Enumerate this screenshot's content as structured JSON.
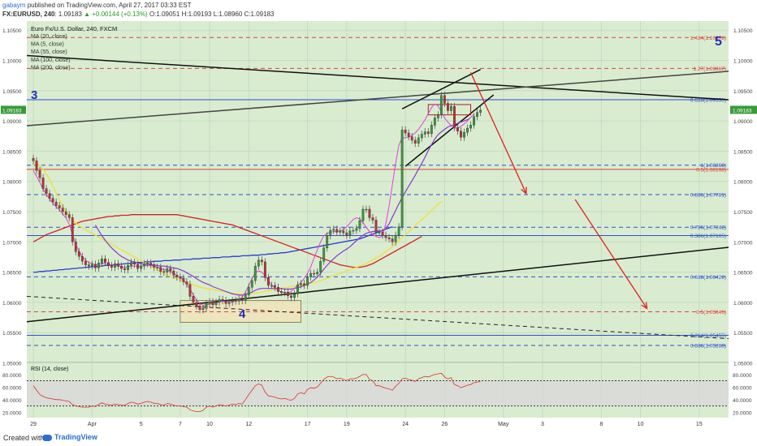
{
  "header": {
    "author": "gabaym",
    "published_text": "published on TradingView.com, April 27, 2017 03:33 EST",
    "symbol": "FX:EURUSD, 240",
    "last": "1.09183",
    "change": "+0.00144 (+0.13%)",
    "open": "O:1.09051",
    "high": "H:1.09193",
    "low": "L:1.08960",
    "close": "C:1.09183"
  },
  "legend": {
    "title": "Euro Fx/U.S. Dollar, 240, FXCM",
    "items": [
      "MA (20, close)",
      "MA (5, close)",
      "MA (55, close)",
      "MA (100, close)",
      "MA (200, close)"
    ]
  },
  "annotations": {
    "wave_3": "3",
    "wave_4": "4",
    "wave_5": "5"
  },
  "fib_labels": [
    {
      "text": "1.414(1.10378)",
      "price": 1.10378,
      "color": "#e04040"
    },
    {
      "text": "1.27(1.09867)",
      "price": 1.09867,
      "color": "#e04040"
    },
    {
      "text": "0.618(1.09350)",
      "price": 1.0935,
      "color": "#3050d0"
    },
    {
      "text": "1(1.08268)",
      "price": 1.08268,
      "color": "#3050d0"
    },
    {
      "text": "0.5(1.08198)",
      "price": 1.08198,
      "color": "#e04040"
    },
    {
      "text": "0.886(1.07781)",
      "price": 1.07781,
      "color": "#3050d0"
    },
    {
      "text": "0.786(1.07242)",
      "price": 1.07242,
      "color": "#3050d0"
    },
    {
      "text": "0.386(1.07105)",
      "price": 1.07105,
      "color": "#3050d0"
    },
    {
      "text": "0.618(1.06422)",
      "price": 1.06422,
      "color": "#3050d0"
    },
    {
      "text": "0.5(1.05845)",
      "price": 1.05845,
      "color": "#e04040"
    },
    {
      "text": "0.214(1.05455)",
      "price": 1.05455,
      "color": "#3050d0"
    },
    {
      "text": "0.386(1.05288)",
      "price": 1.05288,
      "color": "#3050d0"
    }
  ],
  "price_badge": "1.09183",
  "rsi": {
    "title": "RSI (14, close)",
    "ticks": [
      "80.0000",
      "60.0000",
      "40.0000",
      "20.0000"
    ],
    "tick_values": [
      80,
      60,
      40,
      20
    ]
  },
  "footer": {
    "created_with": "Created with",
    "brand": "TradingView"
  },
  "chart_data": {
    "type": "candlestick",
    "title": "Euro Fx/U.S. Dollar, 240, FXCM",
    "ylim": [
      1.0502,
      1.1065
    ],
    "y_ticks": [
      1.105,
      1.1,
      1.095,
      1.09,
      1.085,
      1.08,
      1.075,
      1.07,
      1.065,
      1.06,
      1.055,
      1.05
    ],
    "y_tick_labels": [
      "1.10500",
      "1.10000",
      "1.09500",
      "1.09000",
      "1.08500",
      "1.08000",
      "1.07500",
      "1.07000",
      "1.06500",
      "1.06000",
      "1.05500",
      "1.05000"
    ],
    "x_ticks": [
      {
        "label": "29",
        "bar": 0
      },
      {
        "label": "Apr",
        "bar": 18
      },
      {
        "label": "5",
        "bar": 33
      },
      {
        "label": "7",
        "bar": 45
      },
      {
        "label": "10",
        "bar": 54
      },
      {
        "label": "12",
        "bar": 66
      },
      {
        "label": "17",
        "bar": 84
      },
      {
        "label": "19",
        "bar": 96
      },
      {
        "label": "24",
        "bar": 114
      },
      {
        "label": "26",
        "bar": 126
      },
      {
        "label": "May",
        "bar": 144
      },
      {
        "label": "3",
        "bar": 156
      },
      {
        "label": "8",
        "bar": 174
      },
      {
        "label": "10",
        "bar": 186
      },
      {
        "label": "15",
        "bar": 204
      }
    ],
    "x_bar_range": [
      -2,
      213
    ],
    "close": [
      1.0834,
      1.0818,
      1.0806,
      1.0788,
      1.078,
      1.0772,
      1.0766,
      1.076,
      1.0756,
      1.075,
      1.0745,
      1.074,
      1.07,
      1.0684,
      1.0676,
      1.0668,
      1.0662,
      1.066,
      1.0663,
      1.0657,
      1.0665,
      1.0672,
      1.0666,
      1.0661,
      1.0658,
      1.0664,
      1.066,
      1.0656,
      1.0654,
      1.0661,
      1.0666,
      1.0663,
      1.0656,
      1.066,
      1.0664,
      1.0665,
      1.0662,
      1.0658,
      1.0658,
      1.0651,
      1.065,
      1.0656,
      1.0652,
      1.0645,
      1.0642,
      1.064,
      1.0634,
      1.063,
      1.061,
      1.06,
      1.0594,
      1.0588,
      1.059,
      1.0598,
      1.0601,
      1.0596,
      1.06,
      1.0605,
      1.0603,
      1.0598,
      1.06,
      1.0603,
      1.0602,
      1.0605,
      1.0603,
      1.0612,
      1.0625,
      1.0636,
      1.066,
      1.067,
      1.0667,
      1.0641,
      1.0628,
      1.0628,
      1.0625,
      1.0618,
      1.0616,
      1.0617,
      1.0611,
      1.0608,
      1.0614,
      1.0629,
      1.0631,
      1.0628,
      1.0642,
      1.0648,
      1.0647,
      1.065,
      1.0668,
      1.069,
      1.071,
      1.0719,
      1.0721,
      1.0716,
      1.0718,
      1.0715,
      1.0711,
      1.0718,
      1.0719,
      1.0722,
      1.0735,
      1.0754,
      1.0754,
      1.074,
      1.0736,
      1.0716,
      1.0716,
      1.0711,
      1.0707,
      1.0705,
      1.07,
      1.0711,
      1.0725,
      1.0885,
      1.088,
      1.0874,
      1.0868,
      1.0863,
      1.0872,
      1.0878,
      1.0882,
      1.0879,
      1.0893,
      1.0905,
      1.091,
      1.0942,
      1.0929,
      1.0917,
      1.0924,
      1.0889,
      1.0883,
      1.0873,
      1.0881,
      1.0888,
      1.0893,
      1.0907,
      1.0914,
      1.0918
    ],
    "ma_fast": [
      1.0818,
      1.0808,
      1.0798,
      1.0787,
      1.0779,
      1.0771,
      1.0764,
      1.0758,
      1.0753,
      1.0746,
      1.074,
      1.0729,
      1.0712,
      1.0696,
      1.0684,
      1.0676,
      1.067,
      1.0666,
      1.0664,
      1.0662,
      1.0663,
      1.0664,
      1.0664,
      1.0663,
      1.0662,
      1.0661,
      1.066,
      1.0659,
      1.0658,
      1.0659,
      1.066,
      1.066,
      1.066,
      1.066,
      1.0661,
      1.0661,
      1.0661,
      1.066,
      1.0658,
      1.0656,
      1.0654,
      1.0653,
      1.0651,
      1.0648,
      1.0644,
      1.0641,
      1.0637,
      1.063,
      1.0622,
      1.0613,
      1.0604,
      1.0598,
      1.0595,
      1.0596,
      1.0597,
      1.0598,
      1.0599,
      1.0601,
      1.0602,
      1.0601,
      1.0601,
      1.0602,
      1.0603,
      1.0605,
      1.0609,
      1.0617,
      1.0628,
      1.064,
      1.0649,
      1.0652,
      1.065,
      1.0644,
      1.0636,
      1.0629,
      1.0624,
      1.062,
      1.0617,
      1.0616,
      1.0616,
      1.0618,
      1.0623,
      1.0628,
      1.0633,
      1.064,
      1.0648,
      1.0659,
      1.0673,
      1.0687,
      1.07,
      1.071,
      1.0714,
      1.0716,
      1.0717,
      1.0717,
      1.0718,
      1.072,
      1.0725,
      1.0731,
      1.0737,
      1.074,
      1.0738,
      1.0732,
      1.0724,
      1.0717,
      1.0712,
      1.0709,
      1.0707,
      1.071,
      1.073,
      1.076,
      1.0795,
      1.083,
      1.086,
      1.0872,
      1.0872,
      1.0873,
      1.0876,
      1.088,
      1.0886,
      1.0894,
      1.0902,
      1.0912,
      1.0922,
      1.0928,
      1.0925,
      1.0915,
      1.0905,
      1.0898,
      1.0892,
      1.0888,
      1.0888,
      1.0891,
      1.0895,
      1.09,
      1.0906,
      1.0911
    ],
    "ma_20": [
      null,
      null,
      null,
      null,
      null,
      null,
      null,
      null,
      null,
      null,
      null,
      null,
      null,
      null,
      null,
      null,
      null,
      null,
      null,
      1.0728,
      1.0719,
      1.071,
      1.0703,
      1.0696,
      1.069,
      1.0685,
      1.068,
      1.0676,
      1.0673,
      1.067,
      1.0668,
      1.0667,
      1.0665,
      1.0664,
      1.0663,
      1.0663,
      1.0662,
      1.0662,
      1.0661,
      1.066,
      1.066,
      1.0659,
      1.0658,
      1.0657,
      1.0656,
      1.0654,
      1.0652,
      1.0649,
      1.0646,
      1.0643,
      1.0639,
      1.0636,
      1.0633,
      1.0631,
      1.0629,
      1.0626,
      1.0624,
      1.0622,
      1.062,
      1.0618,
      1.0616,
      1.0614,
      1.0613,
      1.0612,
      1.0612,
      1.0613,
      1.0615,
      1.0617,
      1.062,
      1.0622,
      1.0623,
      1.0623,
      1.0623,
      1.0623,
      1.0623,
      1.0623,
      1.0623,
      1.0622,
      1.0622,
      1.0622,
      1.0623,
      1.0624,
      1.0626,
      1.0628,
      1.063,
      1.0633,
      1.0637,
      1.0642,
      1.0648,
      1.0655,
      1.0661,
      1.0667,
      1.0672,
      1.0677,
      1.0681,
      1.0685,
      1.0688,
      1.0692,
      1.0697,
      1.0702,
      1.0707,
      1.0711,
      1.0714,
      1.0716,
      1.0717,
      1.0718,
      1.0718,
      1.0718,
      1.0722,
      1.073,
      1.0741,
      1.0752,
      1.0763,
      1.0773,
      1.0783,
      1.0792,
      1.0801,
      1.081,
      1.082,
      1.083,
      1.084,
      1.0851,
      1.0861,
      1.087,
      1.0877,
      1.0882,
      1.0886,
      1.089,
      1.0892,
      1.0894,
      1.0896,
      1.0898,
      1.09,
      1.0902,
      1.0905
    ],
    "ma_55": [
      1.0832,
      1.083,
      1.0826,
      1.082,
      1.0812,
      1.0803,
      1.0792,
      1.0781,
      1.077,
      1.076,
      1.075,
      1.0742,
      1.0736,
      1.0731,
      1.0727,
      1.0723,
      1.072,
      1.0717,
      1.0714,
      1.0711,
      1.0708,
      1.0705,
      1.0702,
      1.0699,
      1.0696,
      1.0693,
      1.069,
      1.0687,
      1.0684,
      1.0681,
      1.0678,
      1.0675,
      1.0672,
      1.0669,
      1.0666,
      1.0663,
      1.066,
      1.0657,
      1.0654,
      1.0651,
      1.0648,
      1.0645,
      1.0643,
      1.0641,
      1.0639,
      1.0637,
      1.0635,
      1.0633,
      1.0631,
      1.0629,
      1.0627,
      1.0625,
      1.0624,
      1.0623,
      1.0622,
      1.0621,
      1.062,
      1.0619,
      1.0618,
      1.0617,
      1.0616,
      1.0615,
      1.0614,
      1.0614,
      1.0614,
      1.0614,
      1.0614,
      1.0614,
      1.0615,
      1.0616,
      1.0617,
      1.0618,
      1.0619,
      1.062,
      1.0621,
      1.0622,
      1.0623,
      1.0624,
      1.0625,
      1.0626,
      1.0627,
      1.0628,
      1.0629,
      1.063,
      1.0631,
      1.0632,
      1.0633,
      1.0634,
      1.0636,
      1.0638,
      1.064,
      1.0642,
      1.0644,
      1.0646,
      1.0648,
      1.065,
      1.0652,
      1.0654,
      1.0656,
      1.0658,
      1.066,
      1.0662,
      1.0664,
      1.0667,
      1.067,
      1.0673,
      1.0676,
      1.068,
      1.0684,
      1.0688,
      1.0692,
      1.0697,
      1.0702,
      1.0707,
      1.0712,
      1.0717,
      1.0722,
      1.0727,
      1.0732,
      1.0737,
      1.0742,
      1.0747,
      1.0752,
      1.0757,
      1.0762,
      1.0767
    ],
    "ma_100": [
      1.07,
      1.0703,
      1.0706,
      1.0709,
      1.0712,
      1.0714,
      1.0716,
      1.0718,
      1.072,
      1.0722,
      1.0724,
      1.0726,
      1.0728,
      1.073,
      1.0732,
      1.0734,
      1.0735,
      1.0736,
      1.0737,
      1.0738,
      1.0739,
      1.074,
      1.0741,
      1.0742,
      1.0742,
      1.0743,
      1.0743,
      1.0744,
      1.0744,
      1.0744,
      1.0745,
      1.0745,
      1.0745,
      1.0745,
      1.0745,
      1.0745,
      1.0745,
      1.0745,
      1.0745,
      1.0745,
      1.0745,
      1.0745,
      1.0745,
      1.0745,
      1.0745,
      1.0744,
      1.0743,
      1.0742,
      1.0741,
      1.074,
      1.0739,
      1.0738,
      1.0737,
      1.0736,
      1.0735,
      1.0734,
      1.0733,
      1.0732,
      1.0731,
      1.073,
      1.0729,
      1.0728,
      1.0726,
      1.0724,
      1.0722,
      1.072,
      1.0718,
      1.0716,
      1.0714,
      1.0712,
      1.071,
      1.0708,
      1.0706,
      1.0704,
      1.0702,
      1.07,
      1.0698,
      1.0696,
      1.0694,
      1.0692,
      1.069,
      1.0688,
      1.0686,
      1.0684,
      1.0682,
      1.068,
      1.0678,
      1.0676,
      1.0674,
      1.0672,
      1.067,
      1.0668,
      1.0666,
      1.0664,
      1.0662,
      1.0661,
      1.066,
      1.0659,
      1.0658,
      1.0658,
      1.0658,
      1.0659,
      1.066,
      1.0662,
      1.0664,
      1.0667,
      1.067,
      1.0673,
      1.0676,
      1.0679,
      1.0682,
      1.0685,
      1.0688,
      1.0691,
      1.0694,
      1.0697,
      1.07,
      1.0703,
      1.0706,
      1.0709
    ],
    "ma_200": [
      1.065,
      1.065,
      1.0651,
      1.0651,
      1.0652,
      1.0652,
      1.0653,
      1.0653,
      1.0654,
      1.0654,
      1.0655,
      1.0655,
      1.0656,
      1.0656,
      1.0657,
      1.0657,
      1.0658,
      1.0658,
      1.0659,
      1.0659,
      1.066,
      1.066,
      1.0661,
      1.0661,
      1.0662,
      1.0662,
      1.0663,
      1.0663,
      1.0664,
      1.0664,
      1.0665,
      1.0665,
      1.0666,
      1.0666,
      1.0667,
      1.0667,
      1.0667,
      1.0668,
      1.0668,
      1.0668,
      1.0669,
      1.0669,
      1.0669,
      1.067,
      1.067,
      1.067,
      1.0671,
      1.0671,
      1.0671,
      1.0672,
      1.0672,
      1.0672,
      1.0673,
      1.0673,
      1.0673,
      1.0674,
      1.0674,
      1.0674,
      1.0675,
      1.0675,
      1.0675,
      1.0676,
      1.0676,
      1.0676,
      1.0677,
      1.0677,
      1.0677,
      1.0678,
      1.0678,
      1.0678,
      1.0679,
      1.0679,
      1.068,
      1.068,
      1.0681,
      1.0681,
      1.0682,
      1.0682,
      1.0683,
      1.0684,
      1.0685,
      1.0686,
      1.0687,
      1.0688,
      1.0689,
      1.069,
      1.0691,
      1.0692,
      1.0693,
      1.0694,
      1.0695,
      1.0696,
      1.0697,
      1.0698,
      1.0699,
      1.07,
      1.0701,
      1.0702,
      1.0703,
      1.0704,
      1.0705,
      1.0707,
      1.0709,
      1.0711,
      1.0713,
      1.0715,
      1.0717,
      1.0719,
      1.0721,
      1.0723,
      1.0725
    ],
    "rsi": [
      62,
      55,
      48,
      45,
      43,
      42,
      41,
      40,
      40,
      39,
      38,
      37,
      32,
      30,
      29,
      28,
      28,
      28,
      30,
      29,
      32,
      35,
      33,
      32,
      31,
      33,
      32,
      31,
      31,
      34,
      36,
      35,
      33,
      34,
      36,
      37,
      36,
      34,
      34,
      32,
      31,
      34,
      33,
      31,
      30,
      30,
      29,
      28,
      24,
      22,
      21,
      21,
      23,
      28,
      30,
      28,
      30,
      32,
      31,
      30,
      31,
      33,
      32,
      34,
      33,
      40,
      48,
      55,
      62,
      65,
      63,
      52,
      46,
      45,
      44,
      42,
      41,
      42,
      40,
      39,
      42,
      49,
      51,
      49,
      56,
      59,
      58,
      60,
      66,
      72,
      76,
      77,
      76,
      73,
      74,
      72,
      70,
      73,
      73,
      74,
      77,
      80,
      80,
      72,
      70,
      62,
      62,
      60,
      58,
      57,
      55,
      61,
      66,
      73,
      74,
      72,
      71,
      69,
      73,
      75,
      77,
      76,
      78,
      80,
      81,
      82,
      76,
      73,
      75,
      64,
      62,
      59,
      61,
      63,
      64,
      67,
      68,
      69
    ],
    "fib_levels": [
      1.10378,
      1.09867,
      1.0935,
      1.08268,
      1.08198,
      1.07781,
      1.07242,
      1.07105,
      1.06422,
      1.05845,
      1.05455,
      1.05288
    ]
  }
}
